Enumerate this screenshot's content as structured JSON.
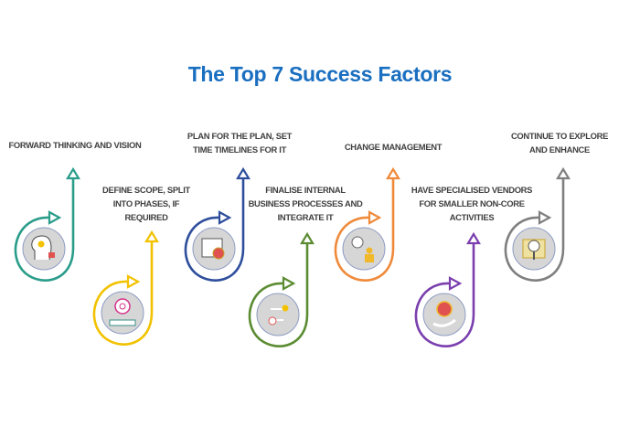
{
  "title": "The Top 7 Success Factors",
  "factors": [
    {
      "label": [
        "FORWARD THINKING AND VISION"
      ],
      "color": "#2a9d8a",
      "icon": "idea-head-icon"
    },
    {
      "label": [
        "DEFINE SCOPE, SPLIT",
        "INTO PHASES, IF",
        "REQUIRED"
      ],
      "color": "#f2c200",
      "icon": "target-scope-icon"
    },
    {
      "label": [
        "PLAN FOR THE PLAN, SET",
        "TIME TIMELINES FOR IT"
      ],
      "color": "#2e4e9c",
      "icon": "calendar-clock-icon"
    },
    {
      "label": [
        "FINALISE INTERNAL",
        "BUSINESS PROCESSES AND",
        "INTEGRATE IT"
      ],
      "color": "#5b8c32",
      "icon": "process-flow-icon"
    },
    {
      "label": [
        "CHANGE MANAGEMENT"
      ],
      "color": "#ef8a3a",
      "icon": "change-gear-person-icon"
    },
    {
      "label": [
        "HAVE SPECIALISED VENDORS",
        "FOR SMALLER NON-CORE",
        "ACTIVITIES"
      ],
      "color": "#7b3fae",
      "icon": "vendor-hand-icon"
    },
    {
      "label": [
        "CONTINUE TO EXPLORE",
        "AND ENHANCE"
      ],
      "color": "#7f7f7f",
      "icon": "explore-map-icon"
    }
  ]
}
